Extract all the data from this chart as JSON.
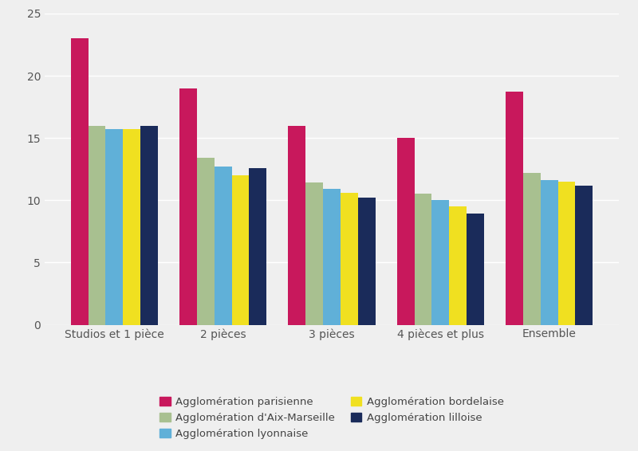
{
  "categories": [
    "Studios et 1 pièce",
    "2 pièces",
    "3 pièces",
    "4 pièces et plus",
    "Ensemble"
  ],
  "series": [
    {
      "label": "Agglomération parisienne",
      "color": "#C8185C",
      "values": [
        23,
        19,
        16,
        15,
        18.7
      ]
    },
    {
      "label": "Agglomération d'Aix-Marseille",
      "color": "#A8C090",
      "values": [
        16,
        13.4,
        11.4,
        10.5,
        12.2
      ]
    },
    {
      "label": "Agglomération lyonnaise",
      "color": "#60B0D8",
      "values": [
        15.7,
        12.7,
        10.9,
        10.0,
        11.6
      ]
    },
    {
      "label": "Agglomération bordelaise",
      "color": "#F0E020",
      "values": [
        15.7,
        12.0,
        10.6,
        9.5,
        11.5
      ]
    },
    {
      "label": "Agglomération lilloise",
      "color": "#1A2B5A",
      "values": [
        16.0,
        12.6,
        10.2,
        8.9,
        11.2
      ]
    }
  ],
  "ylim": [
    0,
    25
  ],
  "yticks": [
    0,
    5,
    10,
    15,
    20,
    25
  ],
  "background_color": "#EFEFEF",
  "plot_bg_color": "#EFEFEF",
  "grid_color": "#ffffff",
  "bar_width": 0.16,
  "legend_ncol": 2,
  "figsize": [
    8.0,
    5.66
  ],
  "dpi": 100,
  "legend_order": [
    0,
    1,
    2,
    3,
    4
  ]
}
